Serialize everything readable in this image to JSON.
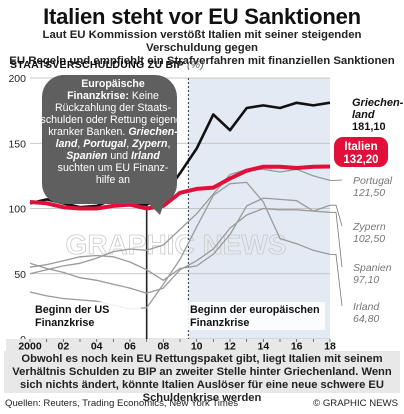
{
  "title": "Italien steht vor EU Sanktionen",
  "subtitle_line1": "Laut EU Kommission verstößt Italien mit seiner steigenden Verschuldung gegen",
  "subtitle_line2": "EU Regeln  und empfiehlt ein  Strafverfahren mit finanziellen Sanktionen",
  "ylabel": "STAATSVERSCHULDUNG ZU BIP",
  "ylabel_unit": "(%)",
  "note": "Obwohl es noch kein EU Rettungspaket gibt, liegt Italien mit seinem Verhältnis Schulden zu BIP an zweiter Stelle hinter Griechenland. Wenn sich nichts ändert, könnte Italien Auslöser für eine neue schwere EU Schuldenkrise werden",
  "sources": "Quellen: Reuters, Trading Economics, New York Times",
  "copyright": "© GRAPHIC NEWS",
  "watermark": "GRAPHIC NEWS",
  "colors": {
    "italy": "#e0103a",
    "greece": "#111111",
    "others": "#9a9a9a",
    "shade": "#e4eaf3",
    "callout": "#5f5f5f",
    "note_bg": "#e8e8e8"
  },
  "chart_data": {
    "type": "line",
    "x": [
      2000,
      2001,
      2002,
      2003,
      2004,
      2005,
      2006,
      2007,
      2008,
      2009,
      2010,
      2011,
      2012,
      2013,
      2014,
      2015,
      2016,
      2017,
      2018
    ],
    "xlim": [
      2000,
      2018
    ],
    "ylim": [
      0,
      200
    ],
    "yticks": [
      0,
      50,
      100,
      150,
      200
    ],
    "xtick_labels": [
      "2000",
      "02",
      "04",
      "06",
      "08",
      "10",
      "12",
      "14",
      "16",
      "18"
    ],
    "series": [
      {
        "name": "Griechenland",
        "final_label": "181,10",
        "values": [
          104,
          107,
          104,
          101,
          102,
          107,
          103,
          103,
          109,
          127,
          146,
          172,
          160,
          177,
          179,
          177,
          181,
          179,
          181.1
        ]
      },
      {
        "name": "Italien",
        "final_label": "132,20",
        "values": [
          105,
          104,
          101,
          100,
          100,
          102,
          103,
          100,
          102,
          112,
          115,
          116,
          123,
          129,
          132,
          132,
          131,
          132,
          132.2
        ]
      },
      {
        "name": "Portugal",
        "final_label": "121,50",
        "values": [
          50,
          53,
          56,
          58,
          62,
          67,
          69,
          68,
          72,
          84,
          96,
          111,
          126,
          130,
          130,
          128,
          130,
          125,
          121.5
        ]
      },
      {
        "name": "Zypern",
        "final_label": "102,50",
        "values": [
          55,
          57,
          60,
          63,
          64,
          63,
          59,
          53,
          45,
          54,
          56,
          65,
          80,
          102,
          108,
          107,
          106,
          98,
          102.5
        ]
      },
      {
        "name": "Spanien",
        "final_label": "97,10",
        "values": [
          58,
          54,
          51,
          47,
          45,
          42,
          39,
          35,
          39,
          53,
          60,
          69,
          85,
          95,
          100,
          99,
          99,
          98,
          97.1
        ]
      },
      {
        "name": "Irland",
        "final_label": "64,80",
        "values": [
          36,
          33,
          31,
          30,
          29,
          26,
          23,
          24,
          42,
          61,
          86,
          110,
          119,
          120,
          105,
          77,
          73,
          68,
          64.8
        ]
      }
    ],
    "events": [
      {
        "x": 2007,
        "label_line1": "Beginn der US",
        "label_line2": "Finanzkrise"
      },
      {
        "x": 2009.5,
        "label_line1": "Beginn der europäischen",
        "label_line2": "Finanzkrise"
      }
    ],
    "callout": {
      "title_line1": "Europäische",
      "title_line2": "Finanzkrise:",
      "lines": [
        [
          "Keine"
        ],
        [
          "Rückzahlung der Staats-"
        ],
        [
          "schulden oder Rettung eigener"
        ],
        [
          "kranker Banken. ",
          "Griechen-"
        ],
        [
          "land",
          ", ",
          "Portugal",
          ", ",
          "Zypern",
          ","
        ],
        [
          "Spanien",
          " und ",
          "Irland"
        ],
        [
          "suchten um EU Finanz-"
        ],
        [
          "hilfe an"
        ]
      ]
    }
  }
}
